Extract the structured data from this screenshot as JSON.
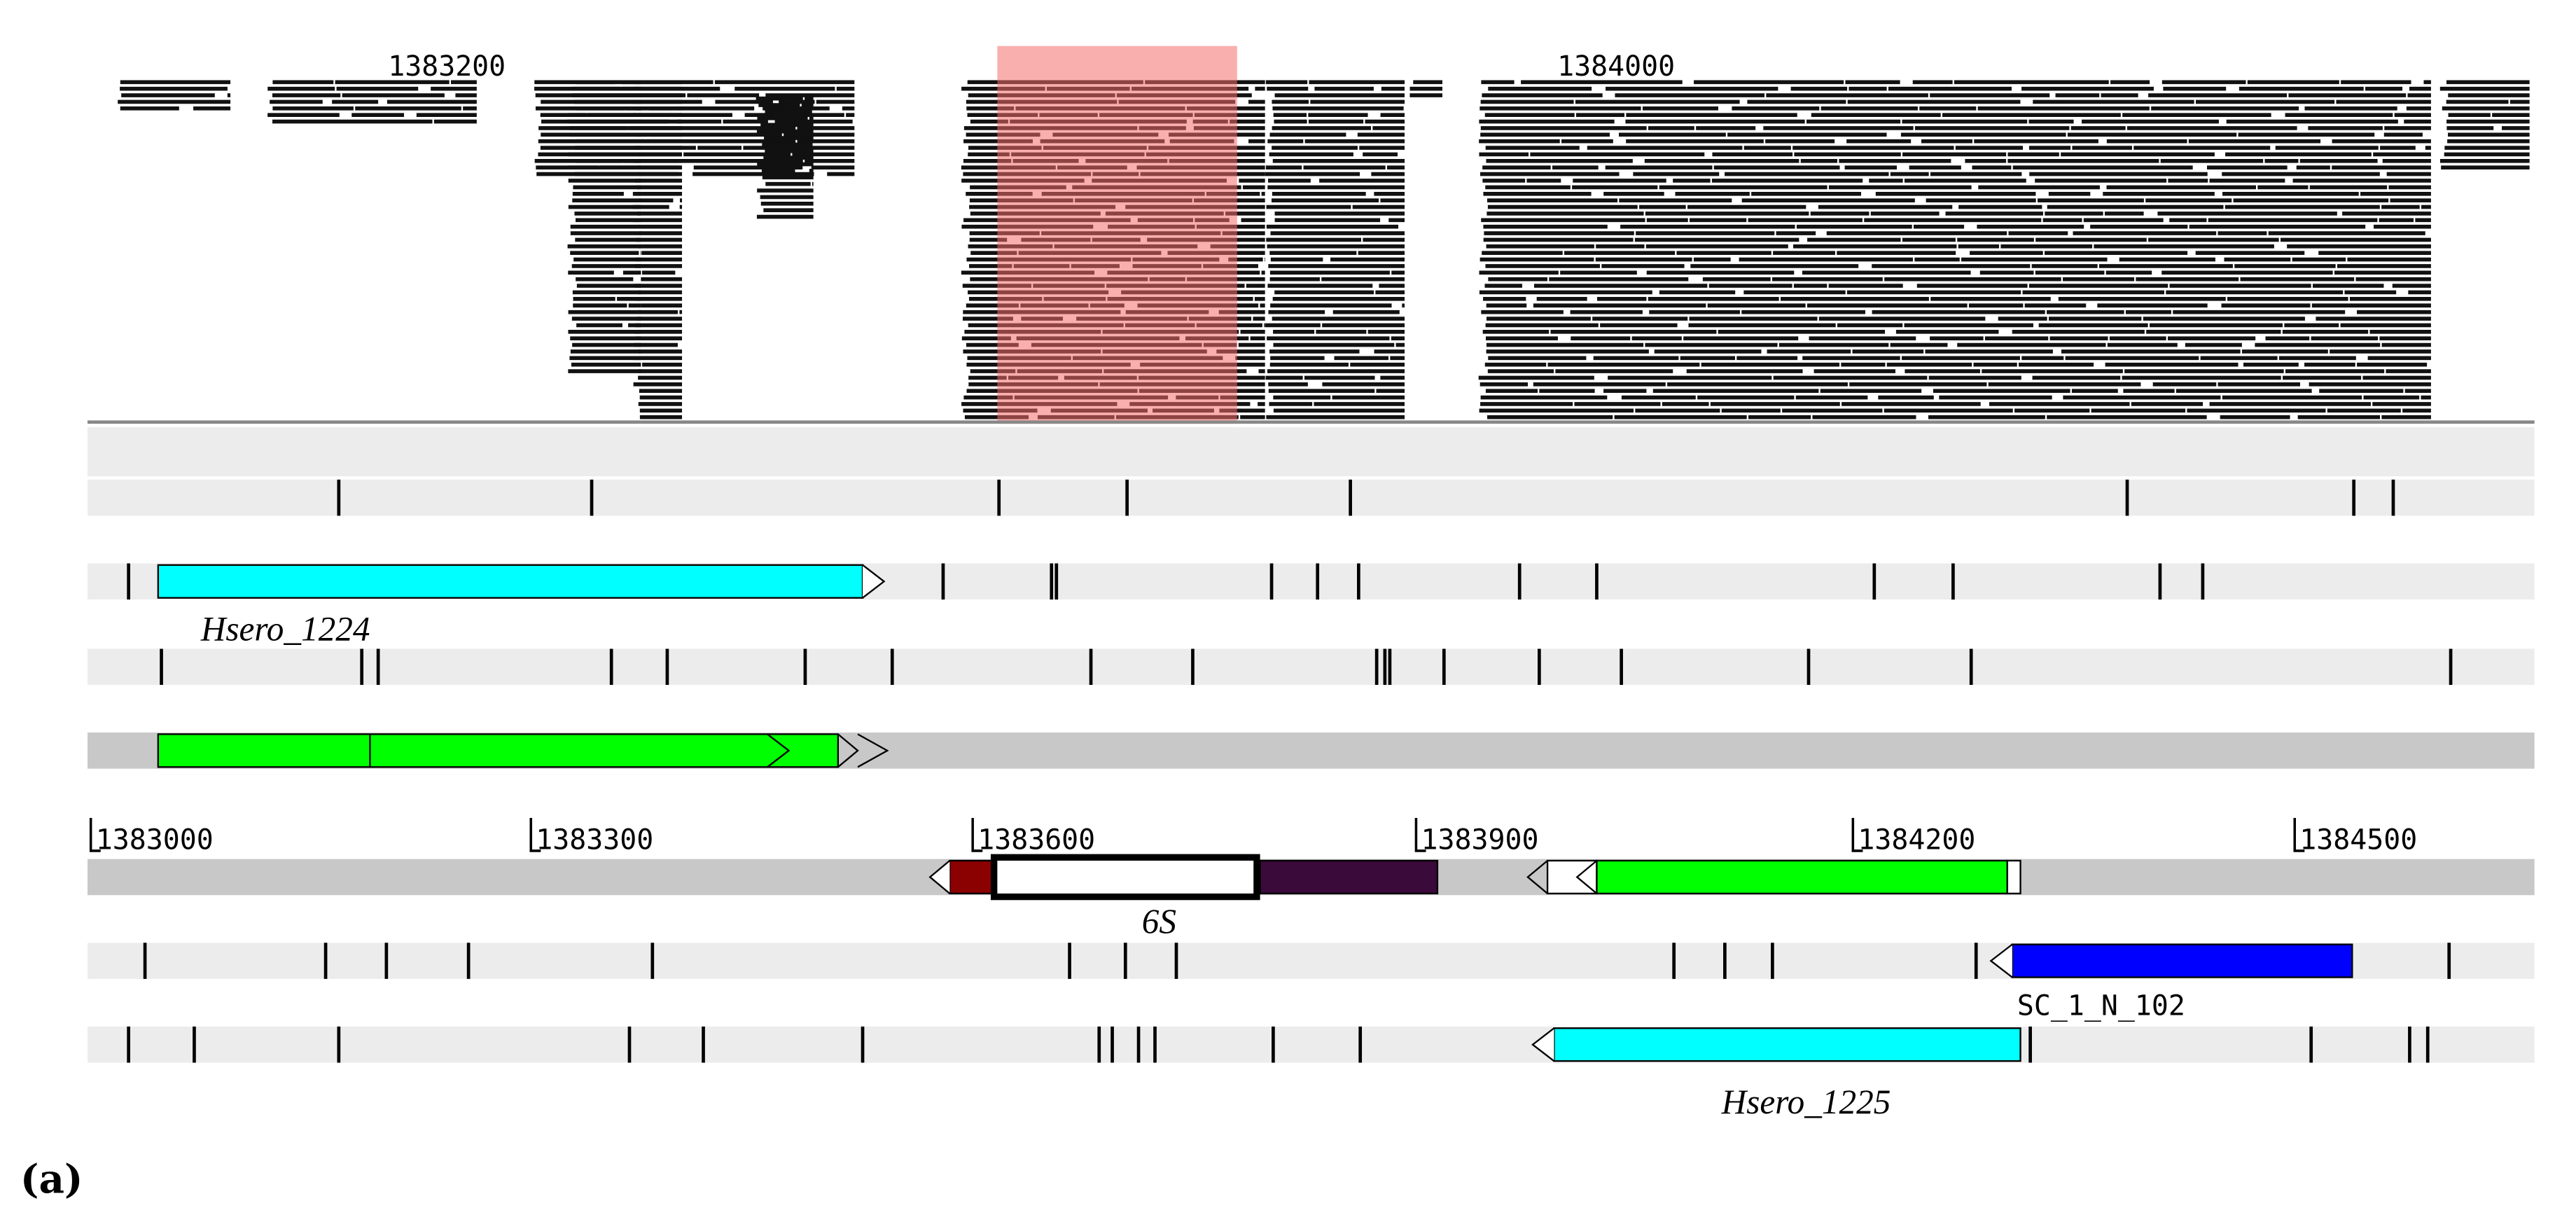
{
  "top_ruler": {
    "labels": [
      "1383200",
      "1384000"
    ]
  },
  "ruler": {
    "labels": [
      "1383000",
      "1383300",
      "1383600",
      "1383900",
      "1384200",
      "1384500"
    ]
  },
  "features": [
    {
      "label": "Hsero_1224"
    },
    {
      "label": "6S"
    },
    {
      "label": "SC_1_N_102"
    },
    {
      "label": "Hsero_1225"
    }
  ],
  "caption": "(a)"
}
